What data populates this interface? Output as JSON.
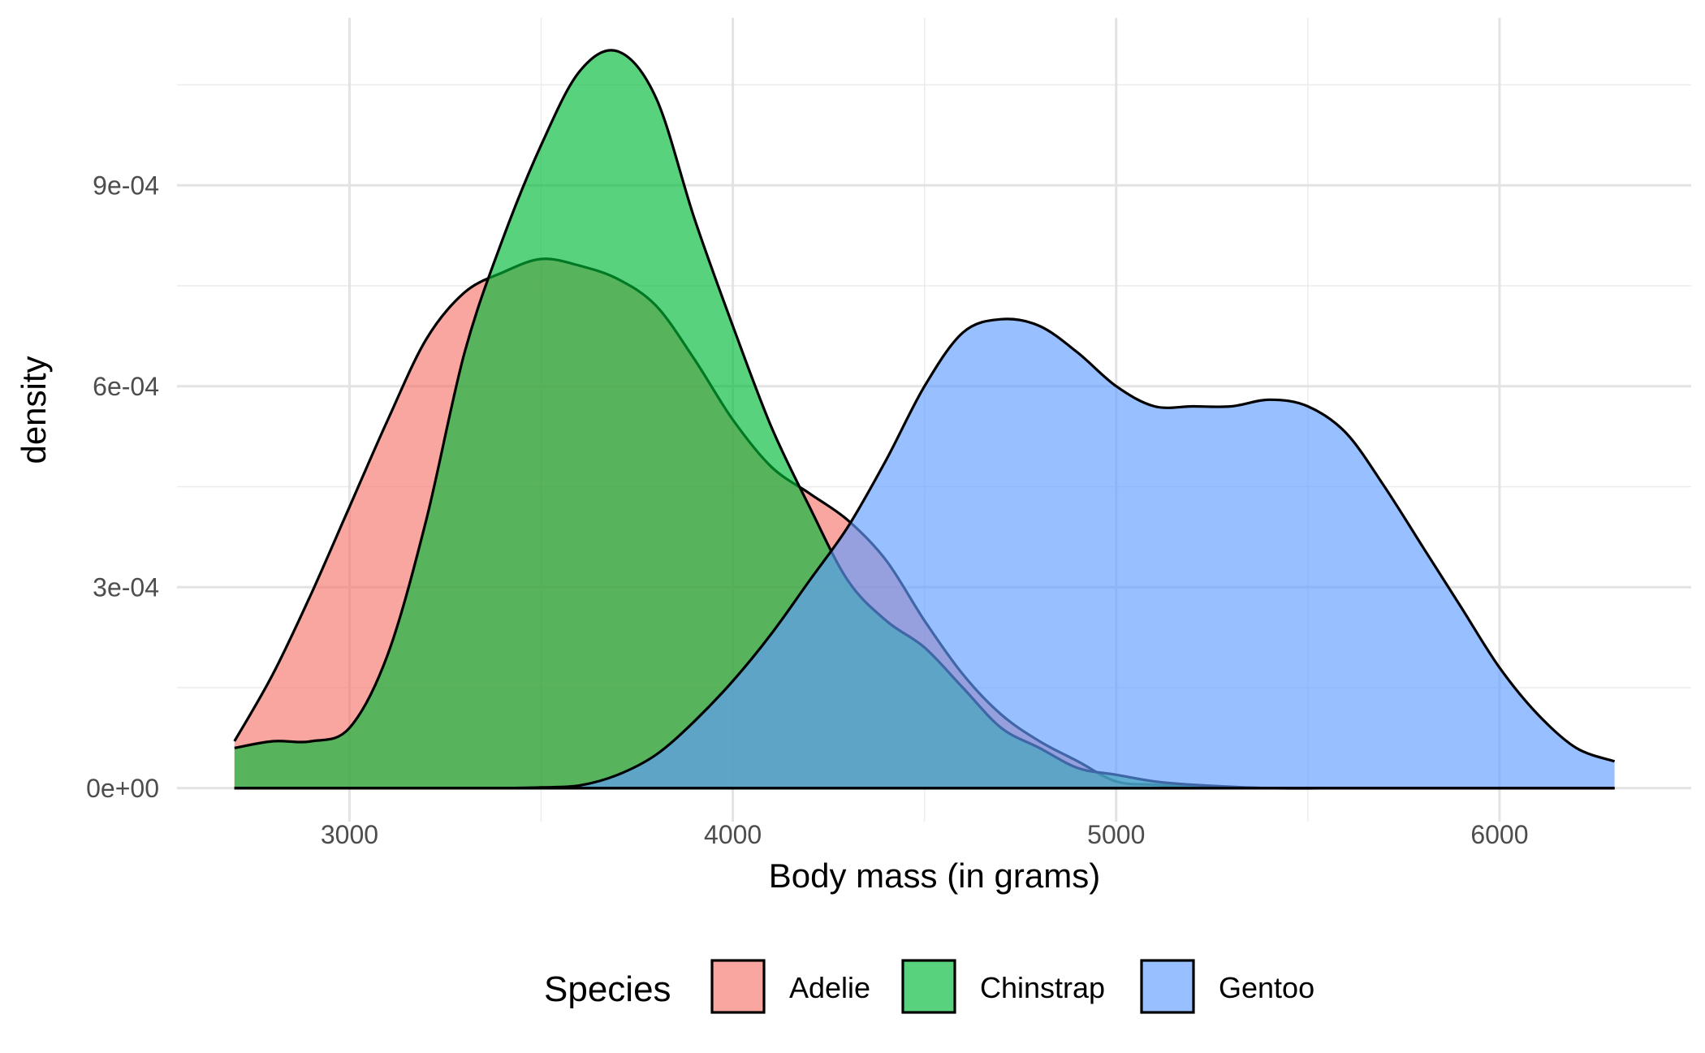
{
  "chart_data": {
    "type": "area",
    "xlabel": "Body mass (in grams)",
    "ylabel": "density",
    "xlim": [
      2550,
      6500
    ],
    "ylim": [
      -5e-05,
      0.00115
    ],
    "x_ticks": [
      3000,
      4000,
      5000,
      6000
    ],
    "x_tick_labels": [
      "3000",
      "4000",
      "5000",
      "6000"
    ],
    "x_minor_ticks": [
      3500,
      4500,
      5500
    ],
    "y_ticks": [
      0,
      0.0003,
      0.0006,
      0.0009
    ],
    "y_tick_labels": [
      "0e+00",
      "3e-04",
      "6e-04",
      "9e-04"
    ],
    "y_minor_ticks": [
      0.00015,
      0.00045,
      0.00075,
      0.00105
    ],
    "grid": true,
    "legend": {
      "title": "Species",
      "position": "bottom",
      "entries": [
        "Adelie",
        "Chinstrap",
        "Gentoo"
      ]
    },
    "series": [
      {
        "name": "Adelie",
        "color": "#F8766D",
        "x": [
          2700,
          2800,
          2900,
          3000,
          3100,
          3200,
          3300,
          3400,
          3500,
          3600,
          3700,
          3800,
          3900,
          4000,
          4100,
          4200,
          4300,
          4400,
          4500,
          4600,
          4700,
          4800,
          4900,
          5000,
          5100,
          5200,
          5400,
          5600,
          5800,
          6000,
          6200,
          6300
        ],
        "y": [
          7e-05,
          0.00017,
          0.00029,
          0.00042,
          0.00055,
          0.00067,
          0.00074,
          0.00077,
          0.00079,
          0.00078,
          0.00076,
          0.00072,
          0.00064,
          0.00055,
          0.00048,
          0.00044,
          0.0004,
          0.00034,
          0.00025,
          0.00017,
          0.00011,
          7e-05,
          4e-05,
          1e-05,
          5e-06,
          2e-06,
          0,
          0,
          0,
          0,
          0,
          0
        ]
      },
      {
        "name": "Chinstrap",
        "color": "#00BA38",
        "x": [
          2700,
          2800,
          2900,
          3000,
          3100,
          3200,
          3300,
          3400,
          3500,
          3600,
          3700,
          3800,
          3900,
          4000,
          4100,
          4200,
          4300,
          4400,
          4500,
          4600,
          4700,
          4800,
          4900,
          5000,
          5100,
          5200,
          5400,
          5600,
          5800,
          6000,
          6200,
          6300
        ],
        "y": [
          6e-05,
          7e-05,
          7e-05,
          9e-05,
          0.0002,
          0.0004,
          0.00065,
          0.00082,
          0.00096,
          0.00107,
          0.0011,
          0.00103,
          0.00085,
          0.00069,
          0.00054,
          0.00042,
          0.00031,
          0.00025,
          0.00021,
          0.00015,
          9e-05,
          6e-05,
          3e-05,
          2e-05,
          1e-05,
          5e-06,
          0,
          0,
          0,
          0,
          0,
          0
        ]
      },
      {
        "name": "Gentoo",
        "color": "#619CFF",
        "x": [
          2700,
          2800,
          2900,
          3000,
          3100,
          3200,
          3300,
          3400,
          3500,
          3600,
          3700,
          3800,
          3900,
          4000,
          4100,
          4200,
          4300,
          4400,
          4500,
          4600,
          4700,
          4800,
          4900,
          5000,
          5100,
          5200,
          5300,
          5400,
          5500,
          5600,
          5700,
          5800,
          5900,
          6000,
          6100,
          6200,
          6300
        ],
        "y": [
          0,
          0,
          0,
          0,
          0,
          0,
          0,
          0,
          1e-06,
          4e-06,
          2e-05,
          5e-05,
          0.0001,
          0.00016,
          0.00023,
          0.00031,
          0.00039,
          0.00049,
          0.0006,
          0.00068,
          0.0007,
          0.00069,
          0.00065,
          0.0006,
          0.00057,
          0.00057,
          0.00057,
          0.00058,
          0.00057,
          0.00053,
          0.00045,
          0.00036,
          0.00027,
          0.00018,
          0.00011,
          6e-05,
          4e-05
        ]
      }
    ]
  }
}
